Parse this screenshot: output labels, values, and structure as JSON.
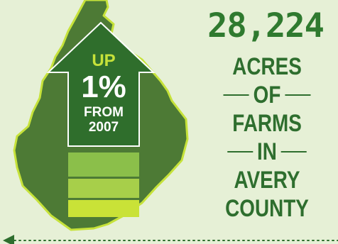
{
  "headline": {
    "value": "28,224",
    "words": [
      "ACRES",
      "OF",
      "FARMS",
      "IN",
      "AVERY",
      "COUNTY"
    ]
  },
  "arrow": {
    "direction_label": "UP",
    "percent": "1%",
    "from_label": "FROM",
    "year": "2007",
    "icon": "up-arrow-icon"
  },
  "map": {
    "icon": "county-map-icon"
  },
  "colors": {
    "background": "#e6f0d6",
    "map_fill": "#4d7a35",
    "map_outline": "#c6e23a",
    "arrow_fill": "#2f6e2c",
    "accent_green": "#2f7a2f",
    "stripe_light": "#8bbf4a",
    "stripe_mid": "#a7cf4a",
    "stripe_bright": "#c9e237"
  }
}
